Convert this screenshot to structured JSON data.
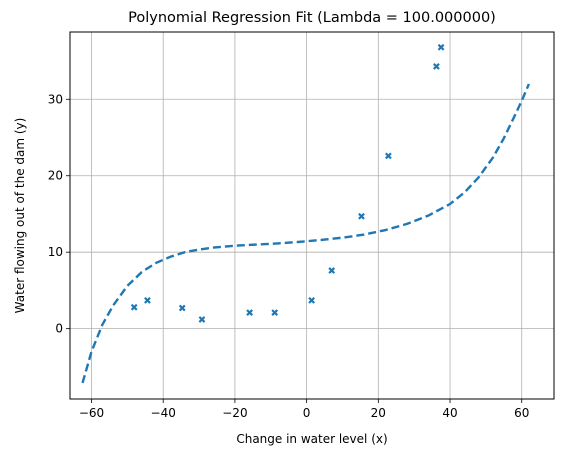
{
  "chart_data": {
    "type": "scatter",
    "title": "Polynomial Regression Fit (Lambda = 100.000000)",
    "xlabel": "Change in water level (x)",
    "ylabel": "Water flowing out of the dam (y)",
    "xlim": [
      -66,
      69
    ],
    "ylim": [
      -9.2,
      38.8
    ],
    "xticks": [
      -60,
      -40,
      -20,
      0,
      20,
      40,
      60
    ],
    "yticks": [
      0,
      10,
      20,
      30
    ],
    "grid": true,
    "series": [
      {
        "kind": "scatter",
        "marker": "x",
        "color": "#1f77b4",
        "points": [
          [
            -48.1,
            2.8
          ],
          [
            -44.4,
            3.7
          ],
          [
            -34.7,
            2.7
          ],
          [
            -29.2,
            1.2
          ],
          [
            -15.9,
            2.1
          ],
          [
            -8.9,
            2.1
          ],
          [
            1.4,
            3.7
          ],
          [
            7.0,
            7.6
          ],
          [
            15.3,
            14.7
          ],
          [
            22.8,
            22.6
          ],
          [
            36.2,
            34.3
          ],
          [
            37.5,
            36.8
          ]
        ]
      },
      {
        "kind": "line",
        "style": "dashed",
        "color": "#1f77b4",
        "points": [
          [
            -62.5,
            -7.1
          ],
          [
            -60,
            -3.0
          ],
          [
            -57,
            0.5
          ],
          [
            -54,
            3.0
          ],
          [
            -50,
            5.6
          ],
          [
            -46,
            7.4
          ],
          [
            -42,
            8.6
          ],
          [
            -38,
            9.4
          ],
          [
            -34,
            10.0
          ],
          [
            -30,
            10.35
          ],
          [
            -26,
            10.6
          ],
          [
            -20,
            10.85
          ],
          [
            -14,
            11.0
          ],
          [
            -8,
            11.15
          ],
          [
            -2,
            11.35
          ],
          [
            4,
            11.6
          ],
          [
            10,
            11.9
          ],
          [
            16,
            12.3
          ],
          [
            22,
            12.9
          ],
          [
            28,
            13.7
          ],
          [
            34,
            14.8
          ],
          [
            40,
            16.3
          ],
          [
            44,
            17.8
          ],
          [
            48,
            19.8
          ],
          [
            52,
            22.4
          ],
          [
            55,
            24.9
          ],
          [
            58,
            27.8
          ],
          [
            60,
            29.8
          ],
          [
            62,
            32.0
          ]
        ]
      }
    ]
  }
}
